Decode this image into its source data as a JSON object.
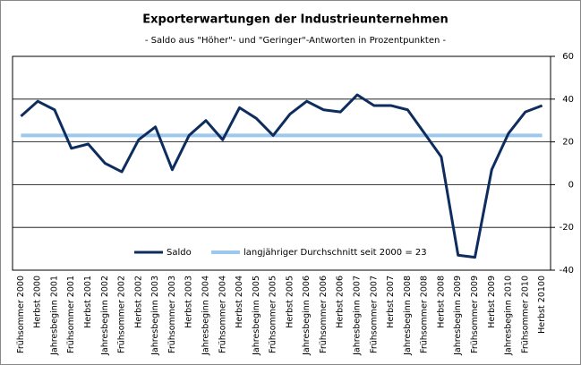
{
  "chart_data": {
    "type": "line",
    "title": "Exporterwartungen der Industrieunternehmen",
    "subtitle": "- Saldo aus \"Höher\"- und \"Geringer\"-Antworten in Prozentpunkten -",
    "categories": [
      "Frühsommer 2000",
      "Herbst 2000",
      "Jahresbeginn 2001",
      "Frühsommer 2001",
      "Herbst 2001",
      "Jahresbeginn 2002",
      "Frühsommer 2002",
      "Herbst 2002",
      "Jahresbeginn 2003",
      "Frühsommer 2003",
      "Herbst 2003",
      "Jahresbeginn 2004",
      "Frühsommer 2004",
      "Herbst 2004",
      "Jahresbeginn 2005",
      "Frühsommer 2005",
      "Herbst 2005",
      "Jahresbeginn 2006",
      "Frühsommer 2006",
      "Herbst 2006",
      "Jahresbeginn 2007",
      "Frühsommer 2007",
      "Herbst 2007",
      "Jahresbeginn 2008",
      "Frühsommer 2008",
      "Herbst 2008",
      "Jahresbeginn 2009",
      "Frühsommer 2009",
      "Herbst 2009",
      "Jahresbeginn 2010",
      "Frühsommer 2010",
      "Herbst 20100"
    ],
    "series": [
      {
        "name": "Saldo",
        "color": "#0d2d5e",
        "values": [
          32,
          39,
          35,
          17,
          19,
          10,
          6,
          21,
          27,
          7,
          23,
          30,
          21,
          36,
          31,
          23,
          33,
          39,
          35,
          34,
          42,
          37,
          37,
          35,
          24,
          13,
          -33,
          -34,
          7,
          24,
          34,
          37
        ]
      },
      {
        "name": "langjähriger Durchschnitt seit 2000 = 23",
        "color": "#9dc8ee",
        "values": [
          23,
          23,
          23,
          23,
          23,
          23,
          23,
          23,
          23,
          23,
          23,
          23,
          23,
          23,
          23,
          23,
          23,
          23,
          23,
          23,
          23,
          23,
          23,
          23,
          23,
          23,
          23,
          23,
          23,
          23,
          23,
          23
        ]
      }
    ],
    "ylim": [
      -40,
      60
    ],
    "yticks": [
      -40,
      -20,
      0,
      20,
      40,
      60
    ],
    "grid": true,
    "legend": "bottom"
  }
}
